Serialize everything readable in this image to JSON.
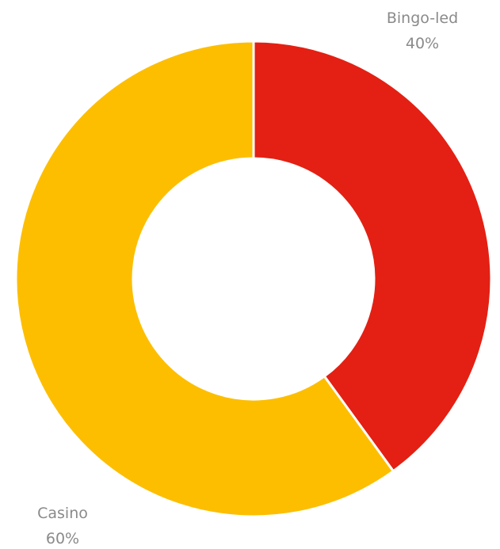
{
  "chart_data": {
    "type": "pie",
    "variant": "donut",
    "labels": [
      "Bingo-led",
      "Casino"
    ],
    "values": [
      40,
      60
    ],
    "value_labels": [
      "40%",
      "60%"
    ],
    "colors": [
      "#e32013",
      "#fdbe00"
    ],
    "start_angle_deg": 0,
    "direction": "clockwise",
    "legend": "none",
    "title": ""
  }
}
